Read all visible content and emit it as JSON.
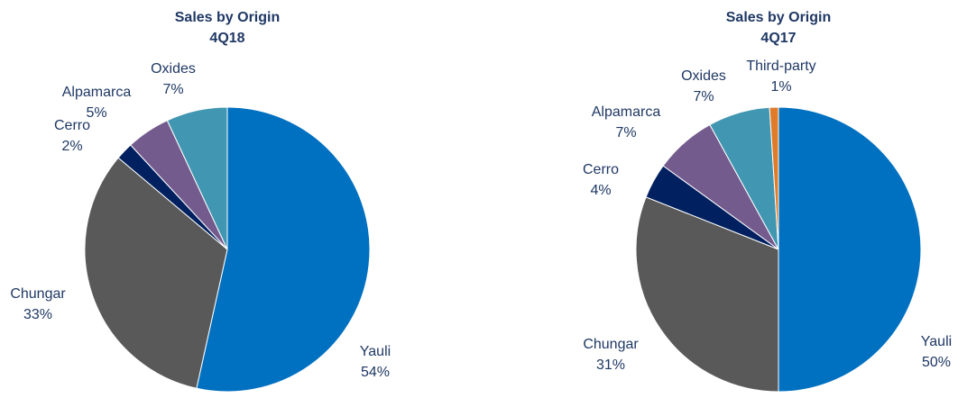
{
  "chart_data": [
    {
      "type": "pie",
      "title": "Sales by Origin",
      "subtitle": "4Q18",
      "categories": [
        "Yauli",
        "Chungar",
        "Cerro",
        "Alpamarca",
        "Oxides"
      ],
      "values": [
        54,
        33,
        2,
        5,
        7
      ],
      "value_labels": [
        "54%",
        "33%",
        "2%",
        "5%",
        "7%"
      ],
      "colors": [
        "#0070c0",
        "#595959",
        "#002060",
        "#745b8e",
        "#4197b1"
      ]
    },
    {
      "type": "pie",
      "title": "Sales by Origin",
      "subtitle": "4Q17",
      "categories": [
        "Yauli",
        "Chungar",
        "Cerro",
        "Alpamarca",
        "Oxides",
        "Third-party"
      ],
      "values": [
        50,
        31,
        4,
        7,
        7,
        1
      ],
      "value_labels": [
        "50%",
        "31%",
        "4%",
        "7%",
        "7%",
        "1%"
      ],
      "colors": [
        "#0070c0",
        "#595959",
        "#002060",
        "#745b8e",
        "#4197b1",
        "#e07b2a"
      ]
    }
  ]
}
